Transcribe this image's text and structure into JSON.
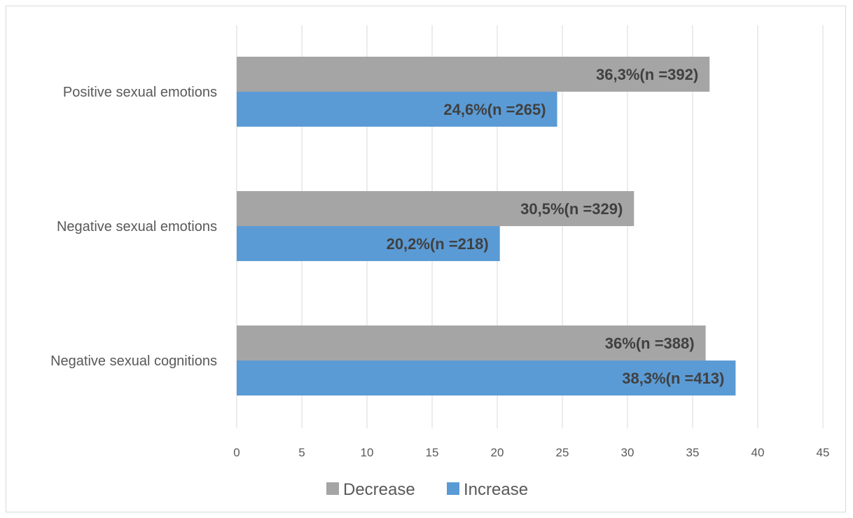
{
  "chart_data": {
    "type": "bar",
    "orientation": "horizontal",
    "categories": [
      "Positive sexual emotions",
      "Negative sexual emotions",
      "Negative sexual cognitions"
    ],
    "series": [
      {
        "name": "Decrease",
        "color": "#a5a5a5",
        "values": [
          36.3,
          30.5,
          36
        ],
        "labels": [
          "36,3%(n =392)",
          "30,5%(n =329)",
          "36%(n =388)"
        ]
      },
      {
        "name": "Increase",
        "color": "#5b9bd5",
        "values": [
          24.6,
          20.2,
          38.3
        ],
        "labels": [
          "24,6%(n =265)",
          "20,2%(n =218)",
          "38,3%(n =413)"
        ]
      }
    ],
    "xlim": [
      0,
      45
    ],
    "xticks": [
      0,
      5,
      10,
      15,
      20,
      25,
      30,
      35,
      40,
      45
    ],
    "grid": true,
    "legend": "bottom"
  }
}
